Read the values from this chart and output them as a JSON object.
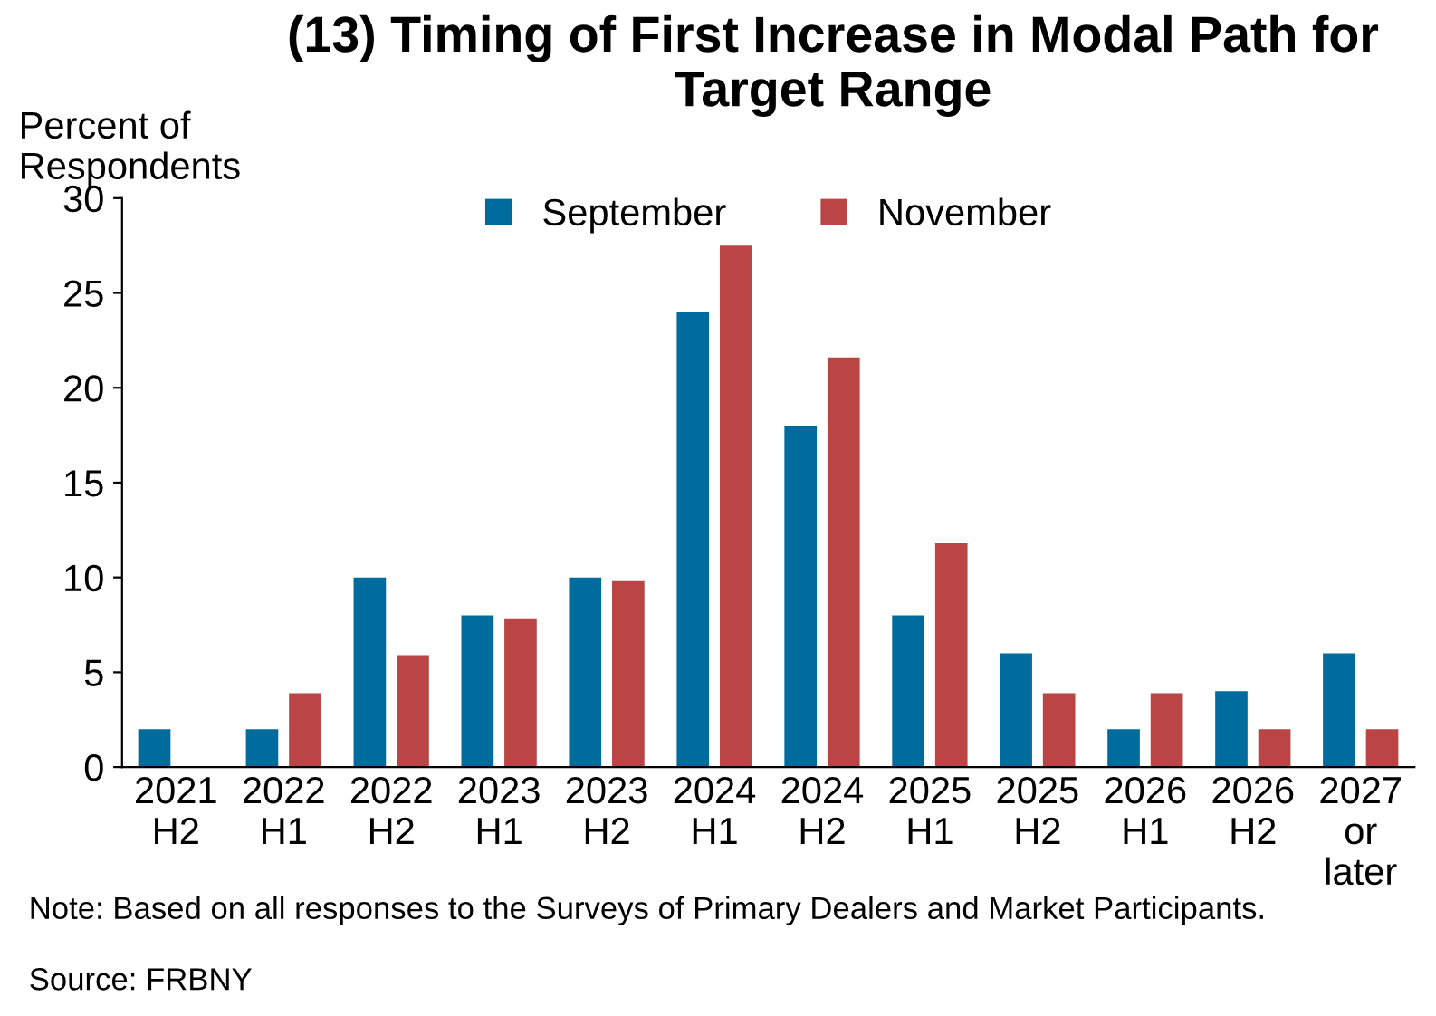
{
  "chart_data": {
    "type": "bar",
    "title": "(13) Timing of First Increase in Modal Path for Target Range",
    "ylabel": "Percent of\nRespondents",
    "categories": [
      "2021\nH2",
      "2022\nH1",
      "2022\nH2",
      "2023\nH1",
      "2023\nH2",
      "2024\nH1",
      "2024\nH2",
      "2025\nH1",
      "2025\nH2",
      "2026\nH1",
      "2026\nH2",
      "2027\nor\nlater"
    ],
    "series": [
      {
        "name": "September",
        "color": "#006c9e",
        "values": [
          2,
          2,
          10,
          8,
          10,
          24,
          18,
          8,
          6,
          2,
          4,
          6
        ]
      },
      {
        "name": "November",
        "color": "#bb4545",
        "values": [
          0,
          3.9,
          5.9,
          7.8,
          9.8,
          27.5,
          21.6,
          11.8,
          3.9,
          3.9,
          2,
          2
        ]
      }
    ],
    "ylim": [
      0,
      30
    ],
    "yticks": [
      0,
      5,
      10,
      15,
      20,
      25,
      30
    ],
    "grid": false,
    "legend": "top",
    "annotations": [
      "Note: Based on all responses to the Surveys of Primary Dealers and Market Participants.",
      "Source: FRBNY"
    ]
  }
}
